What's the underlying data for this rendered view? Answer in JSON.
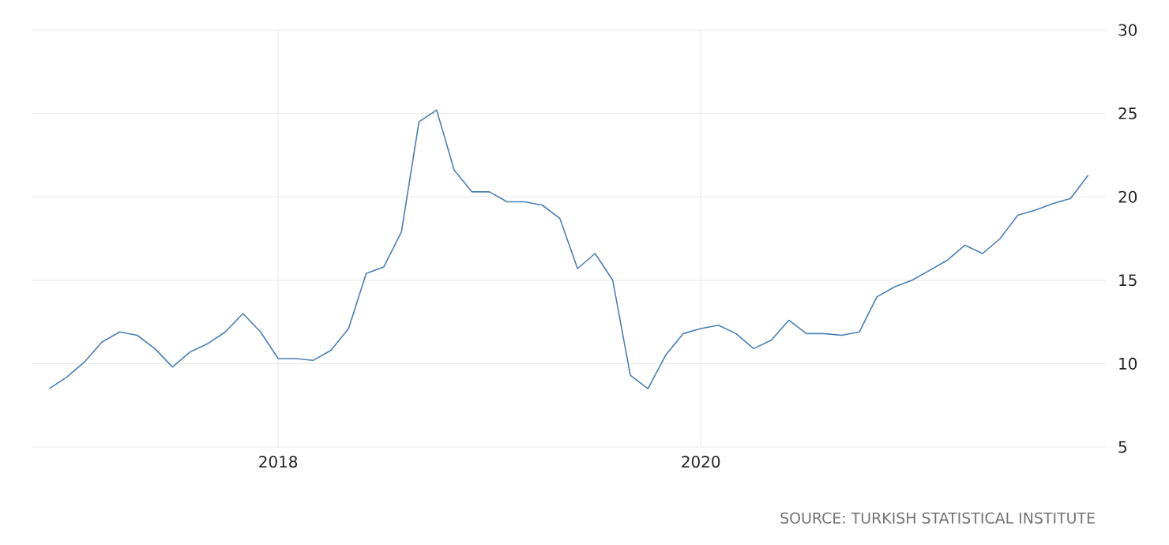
{
  "chart_data": {
    "type": "line",
    "x": [
      "2016-12",
      "2017-01",
      "2017-02",
      "2017-03",
      "2017-04",
      "2017-05",
      "2017-06",
      "2017-07",
      "2017-08",
      "2017-09",
      "2017-10",
      "2017-11",
      "2017-12",
      "2018-01",
      "2018-02",
      "2018-03",
      "2018-04",
      "2018-05",
      "2018-06",
      "2018-07",
      "2018-08",
      "2018-09",
      "2018-10",
      "2018-11",
      "2018-12",
      "2019-01",
      "2019-02",
      "2019-03",
      "2019-04",
      "2019-05",
      "2019-06",
      "2019-07",
      "2019-08",
      "2019-09",
      "2019-10",
      "2019-11",
      "2019-12",
      "2020-01",
      "2020-02",
      "2020-03",
      "2020-04",
      "2020-05",
      "2020-06",
      "2020-07",
      "2020-08",
      "2020-09",
      "2020-10",
      "2020-11",
      "2020-12",
      "2021-01",
      "2021-02",
      "2021-03",
      "2021-04",
      "2021-05",
      "2021-06",
      "2021-07",
      "2021-08",
      "2021-09",
      "2021-10",
      "2021-11"
    ],
    "series": [
      {
        "color": "#4a7fb5",
        "values": [
          8.5,
          9.2,
          10.1,
          11.3,
          11.9,
          11.7,
          10.9,
          9.8,
          10.7,
          11.2,
          11.9,
          13.0,
          11.9,
          10.3,
          10.3,
          10.2,
          10.8,
          12.1,
          15.4,
          15.8,
          17.9,
          24.5,
          25.2,
          21.6,
          20.3,
          20.3,
          19.7,
          19.7,
          19.5,
          18.7,
          15.7,
          16.6,
          15.0,
          9.3,
          8.5,
          10.5,
          11.8,
          12.1,
          12.3,
          11.8,
          10.9,
          11.4,
          12.6,
          11.8,
          11.8,
          11.7,
          11.9,
          14.0,
          14.6,
          15.0,
          15.6,
          16.2,
          17.1,
          16.6,
          17.5,
          18.9,
          19.2,
          19.6,
          19.9,
          21.3
        ]
      }
    ],
    "xlim": [
      "2016-11",
      "2021-12"
    ],
    "xticks": [
      "2018",
      "2020"
    ],
    "ylim": [
      5,
      30
    ],
    "yticks": [
      5,
      10,
      15,
      20,
      25,
      30
    ],
    "grid": true,
    "line_style": "solid",
    "annotations": [
      "SOURCE: TURKISH STATISTICAL INSTITUTE"
    ]
  }
}
